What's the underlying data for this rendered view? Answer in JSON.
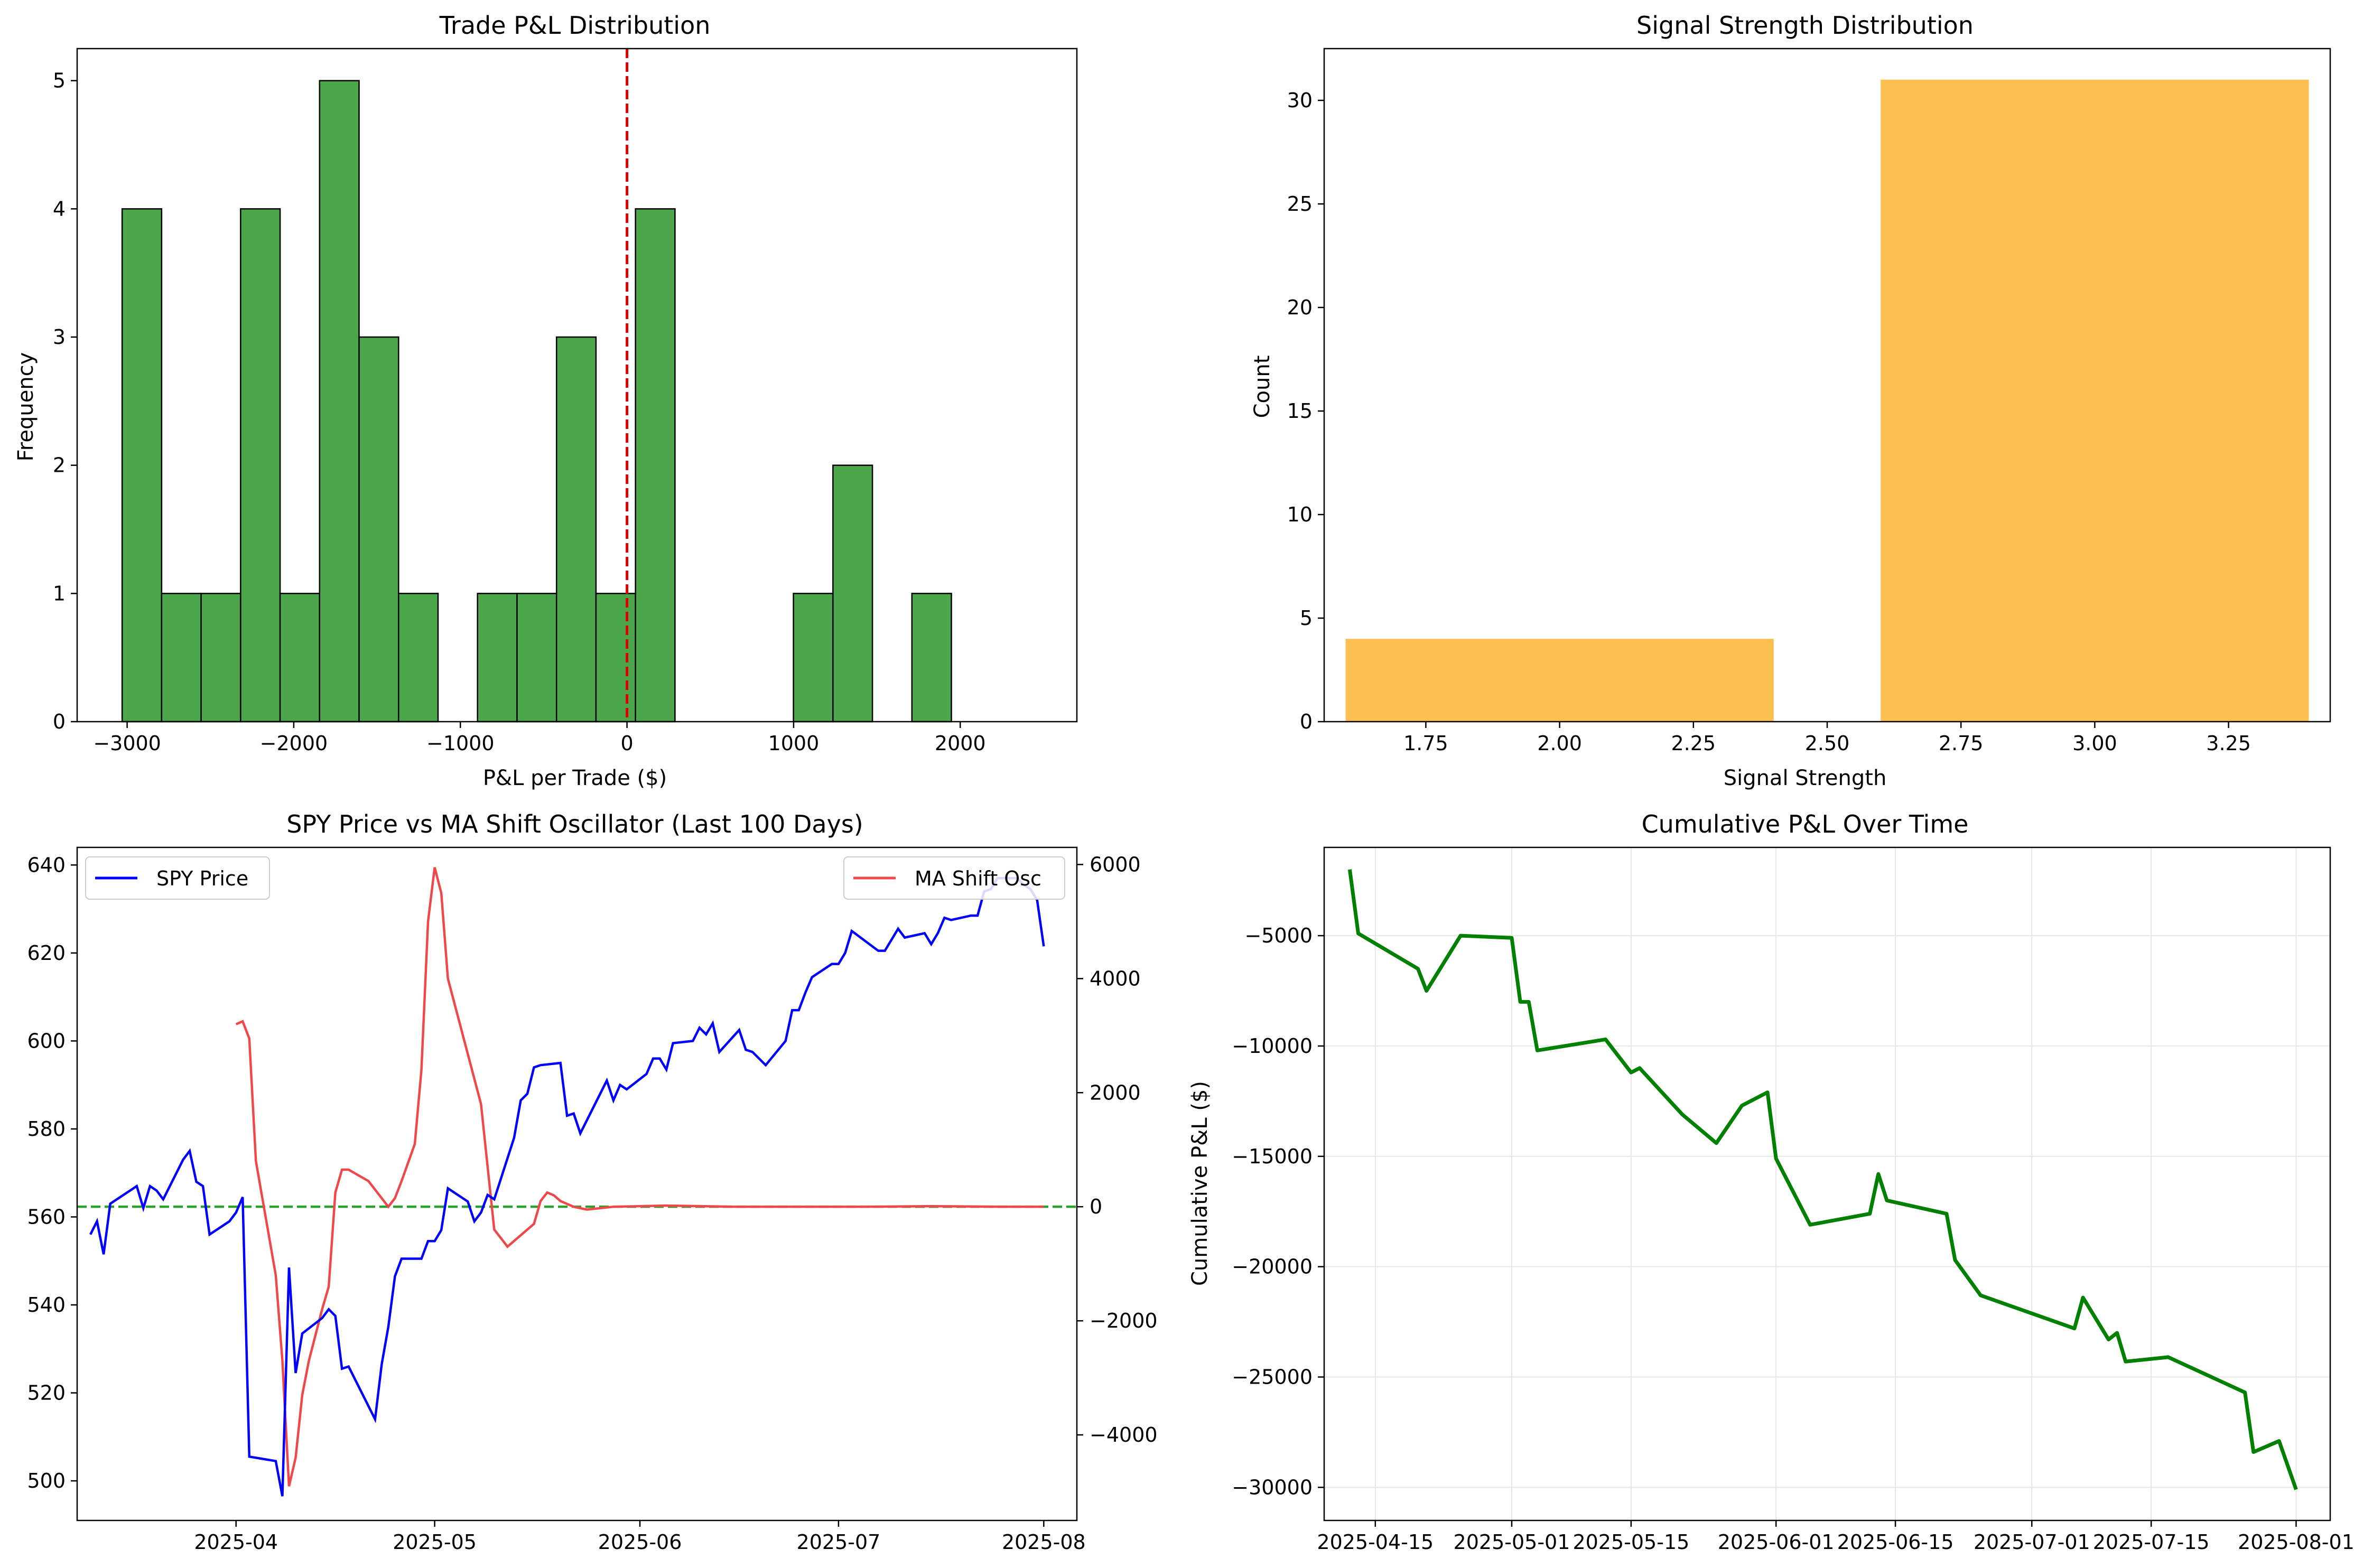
{
  "colors": {
    "hist_green": "#4ca64c",
    "hist_edge": "#000000",
    "signal_orange": "#fdbf4f",
    "spy_blue": "#0000ff",
    "osc_red": "#f0484a",
    "zero_green": "#2ca02c",
    "cum_green": "#008000",
    "zero_red": "#e00000",
    "grid": "#e6e6e6"
  },
  "chart_data": [
    {
      "id": "pnl",
      "type": "bar",
      "title": "Trade P&L Distribution",
      "xlabel": "P&L per Trade ($)",
      "ylabel": "Frequency",
      "bin_start": -3030,
      "bin_width": 237,
      "counts": [
        4,
        1,
        1,
        4,
        1,
        5,
        3,
        1,
        0,
        1,
        1,
        3,
        1,
        4,
        0,
        0,
        0,
        1,
        2,
        0,
        1
      ],
      "xlim": [
        -3300,
        2700
      ],
      "ylim": [
        0,
        5.25
      ],
      "xticks": [
        -3000,
        -2000,
        -1000,
        0,
        1000,
        2000
      ],
      "xtick_labels": [
        "−3000",
        "−2000",
        "−1000",
        "0",
        "1000",
        "2000"
      ],
      "yticks": [
        0,
        1,
        2,
        3,
        4,
        5
      ],
      "ytick_labels": [
        "0",
        "1",
        "2",
        "3",
        "4",
        "5"
      ],
      "vline": 0,
      "grid": false
    },
    {
      "id": "signal",
      "type": "bar",
      "title": "Signal Strength Distribution",
      "xlabel": "Signal Strength",
      "ylabel": "Count",
      "bars": [
        {
          "x0": 1.6,
          "x1": 2.4,
          "value": 4
        },
        {
          "x0": 2.6,
          "x1": 3.4,
          "value": 31
        }
      ],
      "xlim": [
        1.56,
        3.44
      ],
      "ylim": [
        0,
        32.5
      ],
      "xticks": [
        1.75,
        2.0,
        2.25,
        2.5,
        2.75,
        3.0,
        3.25
      ],
      "xtick_labels": [
        "1.75",
        "2.00",
        "2.25",
        "2.50",
        "2.75",
        "3.00",
        "3.25"
      ],
      "yticks": [
        0,
        5,
        10,
        15,
        20,
        25,
        30
      ],
      "ytick_labels": [
        "0",
        "5",
        "10",
        "15",
        "20",
        "25",
        "30"
      ],
      "grid": false
    },
    {
      "id": "spy",
      "type": "line",
      "title": "SPY Price vs MA Shift Oscillator (Last 100 Days)",
      "xlim": [
        "2025-03-08",
        "2025-08-06"
      ],
      "ylim": [
        491,
        644
      ],
      "y2lim": [
        -5500,
        6300
      ],
      "xticks": [
        "2025-04-01",
        "2025-05-01",
        "2025-06-01",
        "2025-07-01",
        "2025-08-01"
      ],
      "xtick_labels": [
        "2025-04",
        "2025-05",
        "2025-06",
        "2025-07",
        "2025-08"
      ],
      "yticks": [
        500,
        520,
        540,
        560,
        580,
        600,
        620,
        640
      ],
      "ytick_labels": [
        "500",
        "520",
        "540",
        "560",
        "580",
        "600",
        "620",
        "640"
      ],
      "y2ticks": [
        -4000,
        -2000,
        0,
        2000,
        4000,
        6000
      ],
      "y2tick_labels": [
        "−4000",
        "−2000",
        "0",
        "2000",
        "4000",
        "6000"
      ],
      "legend_left": "SPY Price",
      "legend_right": "MA Shift Osc",
      "hline_y2": 0,
      "grid": false,
      "series": [
        {
          "name": "SPY Price",
          "axis": "left",
          "points": [
            [
              "2025-03-10",
              556
            ],
            [
              "2025-03-11",
              559
            ],
            [
              "2025-03-12",
              551.5
            ],
            [
              "2025-03-13",
              563
            ],
            [
              "2025-03-14",
              564
            ],
            [
              "2025-03-17",
              567
            ],
            [
              "2025-03-18",
              562
            ],
            [
              "2025-03-19",
              567
            ],
            [
              "2025-03-20",
              566
            ],
            [
              "2025-03-21",
              564
            ],
            [
              "2025-03-24",
              573
            ],
            [
              "2025-03-25",
              575
            ],
            [
              "2025-03-26",
              568
            ],
            [
              "2025-03-27",
              567
            ],
            [
              "2025-03-28",
              556
            ],
            [
              "2025-03-31",
              559
            ],
            [
              "2025-04-01",
              561
            ],
            [
              "2025-04-02",
              564.5
            ],
            [
              "2025-04-03",
              505.5
            ],
            [
              "2025-04-07",
              504.5
            ],
            [
              "2025-04-08",
              496.5
            ],
            [
              "2025-04-09",
              548.5
            ],
            [
              "2025-04-10",
              524.5
            ],
            [
              "2025-04-11",
              533.5
            ],
            [
              "2025-04-14",
              537
            ],
            [
              "2025-04-15",
              539
            ],
            [
              "2025-04-16",
              537.5
            ],
            [
              "2025-04-17",
              525.5
            ],
            [
              "2025-04-18",
              526
            ],
            [
              "2025-04-22",
              514
            ],
            [
              "2025-04-23",
              526.5
            ],
            [
              "2025-04-24",
              535
            ],
            [
              "2025-04-25",
              546.5
            ],
            [
              "2025-04-26",
              550.5
            ],
            [
              "2025-04-29",
              550.5
            ],
            [
              "2025-04-30",
              554.5
            ],
            [
              "2025-05-01",
              554.5
            ],
            [
              "2025-05-02",
              557
            ],
            [
              "2025-05-03",
              566.5
            ],
            [
              "2025-05-06",
              563.5
            ],
            [
              "2025-05-07",
              559
            ],
            [
              "2025-05-08",
              561
            ],
            [
              "2025-05-09",
              565
            ],
            [
              "2025-05-10",
              564
            ],
            [
              "2025-05-13",
              578
            ],
            [
              "2025-05-14",
              586.5
            ],
            [
              "2025-05-15",
              588
            ],
            [
              "2025-05-16",
              594
            ],
            [
              "2025-05-17",
              594.5
            ],
            [
              "2025-05-20",
              595
            ],
            [
              "2025-05-21",
              583
            ],
            [
              "2025-05-22",
              583.5
            ],
            [
              "2025-05-23",
              579
            ],
            [
              "2025-05-27",
              591
            ],
            [
              "2025-05-28",
              586.5
            ],
            [
              "2025-05-29",
              590
            ],
            [
              "2025-05-30",
              589
            ],
            [
              "2025-06-02",
              592.5
            ],
            [
              "2025-06-03",
              596
            ],
            [
              "2025-06-04",
              596
            ],
            [
              "2025-06-05",
              593.5
            ],
            [
              "2025-06-06",
              599.5
            ],
            [
              "2025-06-09",
              600
            ],
            [
              "2025-06-10",
              603
            ],
            [
              "2025-06-11",
              601.5
            ],
            [
              "2025-06-12",
              604
            ],
            [
              "2025-06-13",
              597.5
            ],
            [
              "2025-06-16",
              602.5
            ],
            [
              "2025-06-17",
              598
            ],
            [
              "2025-06-18",
              597.5
            ],
            [
              "2025-06-20",
              594.5
            ],
            [
              "2025-06-23",
              600
            ],
            [
              "2025-06-24",
              607
            ],
            [
              "2025-06-25",
              607
            ],
            [
              "2025-06-26",
              611
            ],
            [
              "2025-06-27",
              614.5
            ],
            [
              "2025-06-30",
              617.5
            ],
            [
              "2025-07-01",
              617.5
            ],
            [
              "2025-07-02",
              620
            ],
            [
              "2025-07-03",
              625
            ],
            [
              "2025-07-07",
              620.5
            ],
            [
              "2025-07-08",
              620.5
            ],
            [
              "2025-07-09",
              623
            ],
            [
              "2025-07-10",
              625.5
            ],
            [
              "2025-07-11",
              623.5
            ],
            [
              "2025-07-14",
              624.5
            ],
            [
              "2025-07-15",
              622
            ],
            [
              "2025-07-16",
              624.5
            ],
            [
              "2025-07-17",
              628
            ],
            [
              "2025-07-18",
              627.5
            ],
            [
              "2025-07-21",
              628.5
            ],
            [
              "2025-07-22",
              628.5
            ],
            [
              "2025-07-23",
              634
            ],
            [
              "2025-07-24",
              634.5
            ],
            [
              "2025-07-25",
              637
            ],
            [
              "2025-07-28",
              637
            ],
            [
              "2025-07-29",
              635.5
            ],
            [
              "2025-07-30",
              634.5
            ],
            [
              "2025-07-31",
              632
            ],
            [
              "2025-08-01",
              621.5
            ]
          ]
        },
        {
          "name": "MA Shift Osc",
          "axis": "right",
          "points": [
            [
              "2025-04-01",
              3200
            ],
            [
              "2025-04-02",
              3250
            ],
            [
              "2025-04-03",
              2950
            ],
            [
              "2025-04-04",
              800
            ],
            [
              "2025-04-07",
              -1200
            ],
            [
              "2025-04-08",
              -2700
            ],
            [
              "2025-04-09",
              -4900
            ],
            [
              "2025-04-10",
              -4400
            ],
            [
              "2025-04-11",
              -3300
            ],
            [
              "2025-04-12",
              -2700
            ],
            [
              "2025-04-14",
              -1800
            ],
            [
              "2025-04-15",
              -1400
            ],
            [
              "2025-04-16",
              250
            ],
            [
              "2025-04-17",
              650
            ],
            [
              "2025-04-18",
              650
            ],
            [
              "2025-04-21",
              450
            ],
            [
              "2025-04-22",
              300
            ],
            [
              "2025-04-23",
              150
            ],
            [
              "2025-04-24",
              0
            ],
            [
              "2025-04-25",
              150
            ],
            [
              "2025-04-26",
              450
            ],
            [
              "2025-04-28",
              1100
            ],
            [
              "2025-04-29",
              2400
            ],
            [
              "2025-04-30",
              5000
            ],
            [
              "2025-05-01",
              5950
            ],
            [
              "2025-05-02",
              5500
            ],
            [
              "2025-05-03",
              4000
            ],
            [
              "2025-05-08",
              1800
            ],
            [
              "2025-05-09",
              700
            ],
            [
              "2025-05-10",
              -400
            ],
            [
              "2025-05-12",
              -700
            ],
            [
              "2025-05-14",
              -500
            ],
            [
              "2025-05-16",
              -300
            ],
            [
              "2025-05-17",
              100
            ],
            [
              "2025-05-18",
              250
            ],
            [
              "2025-05-19",
              200
            ],
            [
              "2025-05-20",
              100
            ],
            [
              "2025-05-22",
              0
            ],
            [
              "2025-05-24",
              -50
            ],
            [
              "2025-05-28",
              0
            ],
            [
              "2025-06-05",
              20
            ],
            [
              "2025-06-15",
              0
            ],
            [
              "2025-06-25",
              0
            ],
            [
              "2025-07-05",
              0
            ],
            [
              "2025-07-15",
              10
            ],
            [
              "2025-07-25",
              0
            ],
            [
              "2025-08-01",
              0
            ]
          ]
        }
      ]
    },
    {
      "id": "cum",
      "type": "line",
      "title": "Cumulative P&L Over Time",
      "xlabel": "",
      "ylabel": "Cumulative P&L ($)",
      "xlim": [
        "2025-04-09",
        "2025-08-05"
      ],
      "ylim": [
        -31500,
        -1000
      ],
      "xticks": [
        "2025-04-15",
        "2025-05-01",
        "2025-05-15",
        "2025-06-01",
        "2025-06-15",
        "2025-07-01",
        "2025-07-15",
        "2025-08-01"
      ],
      "xtick_labels": [
        "2025-04-15",
        "2025-05-01",
        "2025-05-15",
        "2025-06-01",
        "2025-06-15",
        "2025-07-01",
        "2025-07-15",
        "2025-08-01"
      ],
      "yticks": [
        -30000,
        -25000,
        -20000,
        -15000,
        -10000,
        -5000
      ],
      "ytick_labels": [
        "−30000",
        "−25000",
        "−20000",
        "−15000",
        "−10000",
        "−5000"
      ],
      "grid": true,
      "series": [
        {
          "name": "",
          "points": [
            [
              "2025-04-12",
              -2000
            ],
            [
              "2025-04-13",
              -4900
            ],
            [
              "2025-04-20",
              -6500
            ],
            [
              "2025-04-21",
              -7500
            ],
            [
              "2025-04-25",
              -5000
            ],
            [
              "2025-05-01",
              -5100
            ],
            [
              "2025-05-02",
              -8000
            ],
            [
              "2025-05-03",
              -8000
            ],
            [
              "2025-05-04",
              -10200
            ],
            [
              "2025-05-12",
              -9700
            ],
            [
              "2025-05-15",
              -11200
            ],
            [
              "2025-05-16",
              -11000
            ],
            [
              "2025-05-21",
              -13100
            ],
            [
              "2025-05-25",
              -14400
            ],
            [
              "2025-05-28",
              -12700
            ],
            [
              "2025-05-31",
              -12100
            ],
            [
              "2025-06-01",
              -15100
            ],
            [
              "2025-06-05",
              -18100
            ],
            [
              "2025-06-12",
              -17600
            ],
            [
              "2025-06-13",
              -15800
            ],
            [
              "2025-06-14",
              -17000
            ],
            [
              "2025-06-21",
              -17600
            ],
            [
              "2025-06-22",
              -19700
            ],
            [
              "2025-06-25",
              -21300
            ],
            [
              "2025-07-06",
              -22800
            ],
            [
              "2025-07-07",
              -21400
            ],
            [
              "2025-07-10",
              -23300
            ],
            [
              "2025-07-11",
              -23000
            ],
            [
              "2025-07-12",
              -24300
            ],
            [
              "2025-07-17",
              -24100
            ],
            [
              "2025-07-26",
              -25700
            ],
            [
              "2025-07-27",
              -28400
            ],
            [
              "2025-07-30",
              -27900
            ],
            [
              "2025-08-01",
              -30100
            ]
          ]
        }
      ]
    }
  ]
}
